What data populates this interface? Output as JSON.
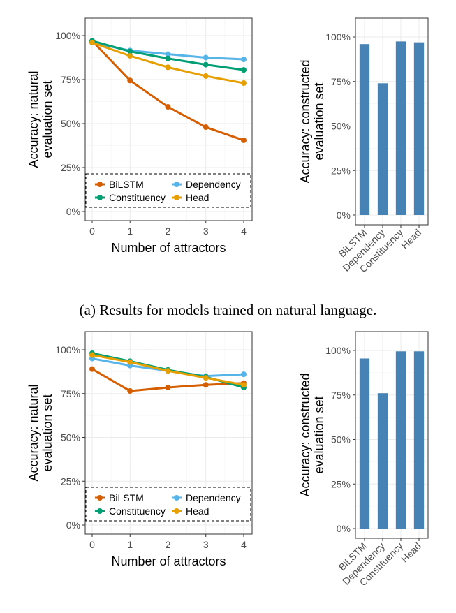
{
  "caption": "(a) Results for models trained on natural language.",
  "colors": {
    "BiLSTM": "#d55e00",
    "Constituency": "#009e73",
    "Dependency": "#56b4e9",
    "Head": "#e69f00",
    "bar": "#4682b4"
  },
  "chart_data": [
    {
      "type": "line",
      "x": [
        0,
        1,
        2,
        3,
        4
      ],
      "xticks": [
        "0",
        "1",
        "2",
        "3",
        "4"
      ],
      "xlabel": "Number of attractors",
      "ylabel": [
        "Accuracy: natural",
        "evaluation set"
      ],
      "yticks": [
        "0%",
        "25%",
        "50%",
        "75%",
        "100%"
      ],
      "ylim": [
        0,
        100
      ],
      "grid": true,
      "legend": "bottom-left",
      "series": [
        {
          "name": "BiLSTM",
          "values": [
            97,
            74.5,
            59.5,
            48,
            40.5
          ]
        },
        {
          "name": "Dependency",
          "values": [
            96,
            91.5,
            89.5,
            87.5,
            86.5
          ]
        },
        {
          "name": "Constituency",
          "values": [
            97,
            91,
            87,
            83.5,
            80.5
          ]
        },
        {
          "name": "Head",
          "values": [
            96,
            88.5,
            82,
            77,
            73
          ]
        }
      ]
    },
    {
      "type": "bar",
      "categories": [
        "BiLSTM",
        "Dependency",
        "Constituency",
        "Head"
      ],
      "values": [
        96,
        74,
        97.5,
        97
      ],
      "ylabel": [
        "Accuracy: constructed",
        "evaluation set"
      ],
      "yticks": [
        "0%",
        "25%",
        "50%",
        "75%",
        "100%"
      ],
      "ylim": [
        0,
        100
      ],
      "grid": true
    },
    {
      "type": "line",
      "x": [
        0,
        1,
        2,
        3,
        4
      ],
      "xticks": [
        "0",
        "1",
        "2",
        "3",
        "4"
      ],
      "xlabel": "Number of attractors",
      "ylabel": [
        "Accuracy: natural",
        "evaluation set"
      ],
      "yticks": [
        "0%",
        "25%",
        "50%",
        "75%",
        "100%"
      ],
      "ylim": [
        0,
        100
      ],
      "grid": true,
      "legend": "bottom-left",
      "series": [
        {
          "name": "BiLSTM",
          "values": [
            89,
            76.5,
            78.5,
            80,
            81
          ]
        },
        {
          "name": "Dependency",
          "values": [
            95,
            91,
            88,
            85,
            86
          ]
        },
        {
          "name": "Constituency",
          "values": [
            98,
            93.5,
            88.5,
            84.5,
            78.5
          ]
        },
        {
          "name": "Head",
          "values": [
            97,
            93,
            88,
            84,
            80
          ]
        }
      ]
    },
    {
      "type": "bar",
      "categories": [
        "BiLSTM",
        "Dependency",
        "Constituency",
        "Head"
      ],
      "values": [
        95.5,
        76,
        99.5,
        99.5
      ],
      "ylabel": [
        "Accuracy: constructed",
        "evaluation set"
      ],
      "yticks": [
        "0%",
        "25%",
        "50%",
        "75%",
        "100%"
      ],
      "ylim": [
        0,
        100
      ],
      "grid": true
    }
  ]
}
